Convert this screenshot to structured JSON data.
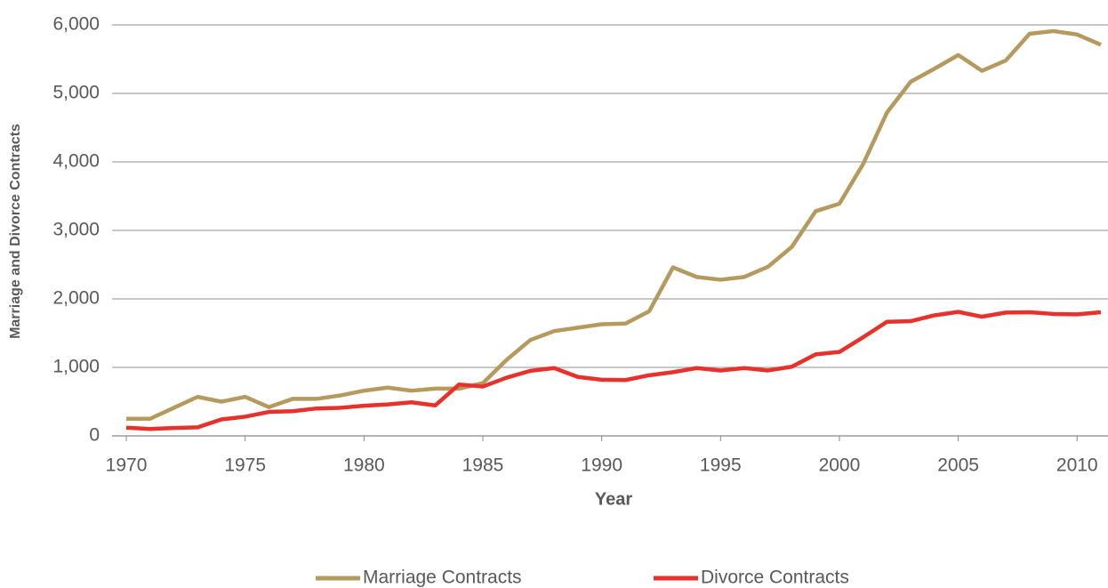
{
  "chart_data": {
    "type": "line",
    "xlabel": "Year",
    "ylabel": "Marriage and Divorce Contracts",
    "x": [
      1970,
      1971,
      1972,
      1973,
      1974,
      1975,
      1976,
      1977,
      1978,
      1979,
      1980,
      1981,
      1982,
      1983,
      1984,
      1985,
      1986,
      1987,
      1988,
      1989,
      1990,
      1991,
      1992,
      1993,
      1994,
      1995,
      1996,
      1997,
      1998,
      1999,
      2000,
      2001,
      2002,
      2003,
      2004,
      2005,
      2006,
      2007,
      2008,
      2009,
      2010,
      2011
    ],
    "series": [
      {
        "name": "Marriage Contracts",
        "color": "#b59a5e",
        "values": [
          250,
          250,
          410,
          570,
          500,
          570,
          420,
          540,
          540,
          590,
          660,
          705,
          660,
          690,
          690,
          770,
          1110,
          1400,
          1530,
          1580,
          1630,
          1640,
          1820,
          2460,
          2320,
          2280,
          2320,
          2470,
          2760,
          3280,
          3390,
          3970,
          4720,
          5170,
          5360,
          5560,
          5330,
          5480,
          5870,
          5910,
          5860,
          5710
        ]
      },
      {
        "name": "Divorce Contracts",
        "color": "#e8312a",
        "values": [
          120,
          100,
          115,
          125,
          240,
          280,
          350,
          360,
          400,
          410,
          440,
          460,
          490,
          445,
          750,
          720,
          850,
          950,
          990,
          860,
          820,
          815,
          885,
          930,
          990,
          955,
          990,
          955,
          1010,
          1190,
          1225,
          1440,
          1665,
          1675,
          1760,
          1810,
          1740,
          1800,
          1805,
          1780,
          1775,
          1805
        ]
      }
    ],
    "xlim": [
      1969.4,
      2011.3
    ],
    "xticks": [
      1970,
      1975,
      1980,
      1985,
      1990,
      1995,
      2000,
      2005,
      2010
    ],
    "ylim": [
      0,
      6000
    ],
    "yticks": [
      0,
      {
        "value": 1000,
        "label": "1,000"
      },
      {
        "value": 2000,
        "label": "2,000"
      },
      {
        "value": 3000,
        "label": "3,000"
      },
      {
        "value": 4000,
        "label": "4,000"
      },
      {
        "value": 5000,
        "label": "5,000"
      },
      {
        "value": 6000,
        "label": "6,000"
      }
    ],
    "grid": true,
    "legend": "bottom"
  }
}
